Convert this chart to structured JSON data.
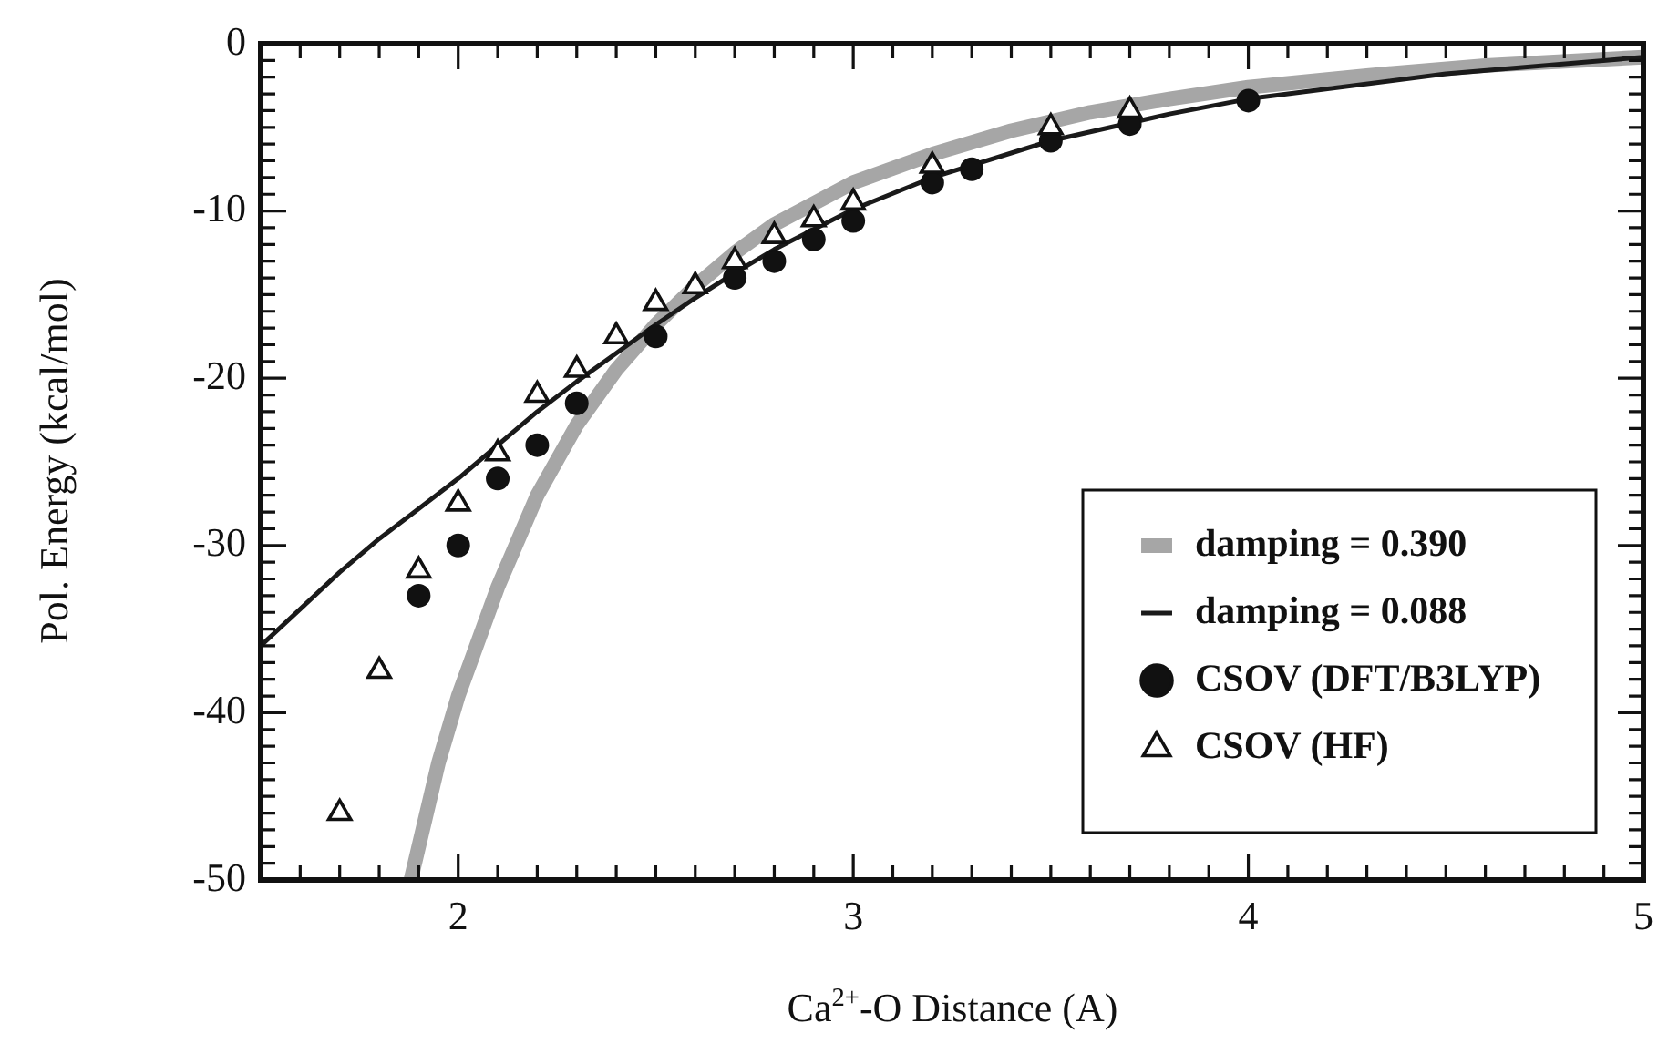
{
  "chart_data": {
    "type": "scatter",
    "xlabel": "Ca$^{2+}$-O Distance (A)",
    "ylabel": "Pol. Energy (kcal/mol)",
    "xlim": [
      1.5,
      5
    ],
    "ylim": [
      -50,
      0
    ],
    "xticks": [
      {
        "value": 1.5,
        "label": null
      },
      {
        "value": 1.6,
        "label": null
      },
      {
        "value": 1.7,
        "label": null
      },
      {
        "value": 1.8,
        "label": null
      },
      {
        "value": 1.9,
        "label": null
      },
      2,
      {
        "value": 2.1,
        "label": null
      },
      {
        "value": 2.2,
        "label": null
      },
      {
        "value": 2.3,
        "label": null
      },
      {
        "value": 2.4,
        "label": null
      },
      {
        "value": 2.5,
        "label": null
      },
      {
        "value": 2.6,
        "label": null
      },
      {
        "value": 2.7,
        "label": null
      },
      {
        "value": 2.8,
        "label": null
      },
      {
        "value": 2.9,
        "label": null
      },
      3,
      {
        "value": 3.1,
        "label": null
      },
      {
        "value": 3.2,
        "label": null
      },
      {
        "value": 3.3,
        "label": null
      },
      {
        "value": 3.4,
        "label": null
      },
      {
        "value": 3.5,
        "label": null
      },
      {
        "value": 3.6,
        "label": null
      },
      {
        "value": 3.7,
        "label": null
      },
      {
        "value": 3.8,
        "label": null
      },
      {
        "value": 3.9,
        "label": null
      },
      4,
      {
        "value": 4.1,
        "label": null
      },
      {
        "value": 4.2,
        "label": null
      },
      {
        "value": 4.3,
        "label": null
      },
      {
        "value": 4.4,
        "label": null
      },
      {
        "value": 4.5,
        "label": null
      },
      {
        "value": 4.6,
        "label": null
      },
      {
        "value": 4.7,
        "label": null
      },
      {
        "value": 4.8,
        "label": null
      },
      {
        "value": 4.9,
        "label": null
      },
      5
    ],
    "yticks": [
      -50,
      {
        "value": -49,
        "label": null
      },
      {
        "value": -48,
        "label": null
      },
      {
        "value": -47,
        "label": null
      },
      {
        "value": -46,
        "label": null
      },
      {
        "value": -45,
        "label": null
      },
      {
        "value": -44,
        "label": null
      },
      {
        "value": -43,
        "label": null
      },
      {
        "value": -42,
        "label": null
      },
      {
        "value": -41,
        "label": null
      },
      -40,
      {
        "value": -39,
        "label": null
      },
      {
        "value": -38,
        "label": null
      },
      {
        "value": -37,
        "label": null
      },
      {
        "value": -36,
        "label": null
      },
      {
        "value": -35,
        "label": null
      },
      {
        "value": -34,
        "label": null
      },
      {
        "value": -33,
        "label": null
      },
      {
        "value": -32,
        "label": null
      },
      {
        "value": -31,
        "label": null
      },
      -30,
      {
        "value": -29,
        "label": null
      },
      {
        "value": -28,
        "label": null
      },
      {
        "value": -27,
        "label": null
      },
      {
        "value": -26,
        "label": null
      },
      {
        "value": -25,
        "label": null
      },
      {
        "value": -24,
        "label": null
      },
      {
        "value": -23,
        "label": null
      },
      {
        "value": -22,
        "label": null
      },
      {
        "value": -21,
        "label": null
      },
      -20,
      {
        "value": -19,
        "label": null
      },
      {
        "value": -18,
        "label": null
      },
      {
        "value": -17,
        "label": null
      },
      {
        "value": -16,
        "label": null
      },
      {
        "value": -15,
        "label": null
      },
      {
        "value": -14,
        "label": null
      },
      {
        "value": -13,
        "label": null
      },
      {
        "value": -12,
        "label": null
      },
      {
        "value": -11,
        "label": null
      },
      -10,
      {
        "value": -9,
        "label": null
      },
      {
        "value": -8,
        "label": null
      },
      {
        "value": -7,
        "label": null
      },
      {
        "value": -6,
        "label": null
      },
      {
        "value": -5,
        "label": null
      },
      {
        "value": -4,
        "label": null
      },
      {
        "value": -3,
        "label": null
      },
      {
        "value": -2,
        "label": null
      },
      {
        "value": -1,
        "label": null
      },
      0
    ],
    "legend": "bottom right",
    "grid": false,
    "series": [
      {
        "name": "damping = 0.390",
        "type": "line",
        "marker": "none",
        "line_style": "solid",
        "color": "#a6a6a6",
        "x": [
          1.88,
          1.95,
          2.0,
          2.1,
          2.2,
          2.3,
          2.4,
          2.5,
          2.6,
          2.7,
          2.8,
          3.0,
          3.2,
          3.4,
          3.6,
          3.8,
          4.0,
          4.3,
          4.6,
          5.0
        ],
        "values": [
          -50,
          -43,
          -39,
          -32.5,
          -27,
          -22.8,
          -19.5,
          -16.8,
          -14.5,
          -12.5,
          -10.8,
          -8.3,
          -6.6,
          -5.2,
          -4.1,
          -3.3,
          -2.6,
          -1.9,
          -1.3,
          -0.8
        ]
      },
      {
        "name": "damping = 0.088",
        "type": "line",
        "marker": "none",
        "line_style": "solid",
        "color": "#1a1a1a",
        "x": [
          1.5,
          1.6,
          1.7,
          1.8,
          1.9,
          2.0,
          2.1,
          2.2,
          2.3,
          2.4,
          2.5,
          2.6,
          2.7,
          2.8,
          3.0,
          3.2,
          3.5,
          3.8,
          4.0,
          4.5,
          5.0
        ],
        "values": [
          -36,
          -33.8,
          -31.6,
          -29.6,
          -27.8,
          -26,
          -24,
          -22,
          -20.2,
          -18.5,
          -16.8,
          -15.2,
          -13.7,
          -12.3,
          -9.9,
          -8,
          -5.8,
          -4.2,
          -3.3,
          -1.8,
          -0.8
        ]
      },
      {
        "name": "CSOV (DFT/B3LYP)",
        "marker": "circle",
        "color": "#111111",
        "x": [
          1.9,
          2.0,
          2.1,
          2.2,
          2.3,
          2.5,
          2.7,
          2.8,
          2.9,
          3.0,
          3.2,
          3.3,
          3.5,
          3.7,
          4.0
        ],
        "values": [
          -33,
          -30,
          -26,
          -24,
          -21.5,
          -17.5,
          -14,
          -13,
          -11.7,
          -10.6,
          -8.3,
          -7.5,
          -5.8,
          -4.8,
          -3.4
        ]
      },
      {
        "name": "CSOV (HF)",
        "marker": "triangle",
        "color": "#111111",
        "x": [
          1.7,
          1.8,
          1.9,
          2.0,
          2.1,
          2.2,
          2.3,
          2.4,
          2.5,
          2.6,
          2.7,
          2.8,
          2.9,
          3.0,
          3.2,
          3.5,
          3.7
        ],
        "values": [
          -46,
          -37.5,
          -31.5,
          -27.5,
          -24.5,
          -21,
          -19.5,
          -17.5,
          -15.5,
          -14.5,
          -13,
          -11.5,
          -10.5,
          -9.5,
          -7.3,
          -5,
          -4
        ]
      }
    ]
  }
}
